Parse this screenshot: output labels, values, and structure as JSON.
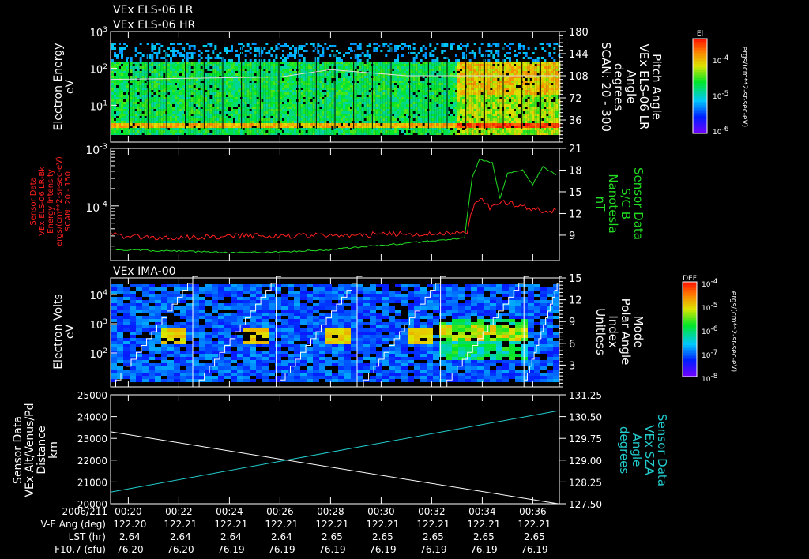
{
  "titles": {
    "top1": "VEx ELS-06 LR",
    "top2": "VEx ELS-06 HR",
    "ima": "VEx IMA-00"
  },
  "colors": {
    "bg": "#000000",
    "axis": "#ffffff",
    "red": "#ff2020",
    "green": "#22dd22",
    "cyan": "#22cccc"
  },
  "chart_data": [
    {
      "type": "heatmap",
      "name": "ELS electron spectrogram",
      "ylabel": [
        "Electron Energy",
        "eV"
      ],
      "yticks": [
        "10^3",
        "10^2",
        "10^1"
      ],
      "ylim_log": [
        0,
        3
      ],
      "right_label": [
        "Pitch Angle",
        "VEx ELS-06 LR",
        "Angle",
        "degrees",
        "SCAN: 20 - 300"
      ],
      "right_ticks": [
        "180",
        "144",
        "108",
        "72",
        "36"
      ],
      "right_lim": [
        0,
        180
      ],
      "pitch_angle_trace_deg": [
        [
          -0.7,
          102
        ],
        [
          6,
          106
        ],
        [
          8,
          118
        ],
        [
          11,
          108
        ],
        [
          17,
          108
        ]
      ],
      "colorbar": {
        "title": "El",
        "ticks": [
          "10^-4",
          "10^-5",
          "10^-6"
        ],
        "unit": "ergs/(cm**2-sr-sec-eV)"
      }
    },
    {
      "type": "line",
      "name": "ELS intensity and magnetic field",
      "ylabel_left": [
        "Sensor Data",
        "VEx ELS-06 LR-Bk",
        "Energy Intensity",
        "ergs/(cm**2-sr-sec-eV)",
        "SCAN: 20 - 150"
      ],
      "yticks_left": [
        "10^-3",
        "10^-4"
      ],
      "ylabel_right": [
        "Sensor Data",
        "S/C B",
        "Nanotesla",
        "nT"
      ],
      "yticks_right": [
        "21",
        "18",
        "15",
        "12",
        "9"
      ],
      "right_lim": [
        5.5,
        21
      ],
      "left_lim_log": [
        -4.95,
        -3
      ],
      "series": [
        {
          "name": "ELS Energy Intensity",
          "color": "red",
          "axis": "left",
          "points": [
            [
              -0.7,
              3.2e-05
            ],
            [
              0,
              2.9e-05
            ],
            [
              2,
              2.8e-05
            ],
            [
              4,
              3e-05
            ],
            [
              6,
              3e-05
            ],
            [
              8,
              3.1e-05
            ],
            [
              10,
              3.2e-05
            ],
            [
              12,
              3.3e-05
            ],
            [
              13.4,
              3.5e-05
            ],
            [
              13.7,
              0.00011
            ],
            [
              14.0,
              0.00013
            ],
            [
              14.3,
              9e-05
            ],
            [
              14.7,
              0.00012
            ],
            [
              15.5,
              0.0001
            ],
            [
              16.2,
              8.5e-05
            ],
            [
              17,
              8.2e-05
            ]
          ]
        },
        {
          "name": "S/C B",
          "color": "green",
          "axis": "right",
          "points": [
            [
              -0.7,
              7.0
            ],
            [
              2,
              6.8
            ],
            [
              4,
              6.6
            ],
            [
              6,
              6.7
            ],
            [
              8,
              7.0
            ],
            [
              10,
              7.6
            ],
            [
              12,
              8.2
            ],
            [
              13.3,
              8.6
            ],
            [
              13.6,
              17
            ],
            [
              13.9,
              19.5
            ],
            [
              14.4,
              19
            ],
            [
              14.7,
              14
            ],
            [
              15.0,
              17.5
            ],
            [
              15.6,
              18
            ],
            [
              16.0,
              16
            ],
            [
              16.4,
              18.5
            ],
            [
              17,
              17.2
            ]
          ]
        }
      ]
    },
    {
      "type": "heatmap",
      "name": "IMA ion spectrogram",
      "ylabel": [
        "Electron Volts",
        "eV"
      ],
      "yticks": [
        "10^4",
        "10^3",
        "10^2"
      ],
      "right_label": [
        "Mode",
        "Polar Angle",
        "Index",
        "Unitless"
      ],
      "right_ticks": [
        "15",
        "12",
        "9",
        "6",
        "3"
      ],
      "right_lim": [
        0,
        15
      ],
      "sweep_starts_min": [
        -0.7,
        2.6,
        5.8,
        9.1,
        12.4,
        15.6
      ],
      "colorbar": {
        "title": "DEF",
        "ticks": [
          "10^-4",
          "10^-5",
          "10^-6",
          "10^-7",
          "10^-8"
        ],
        "unit": "ergs/(cm**2-sr-sec-eV)"
      }
    },
    {
      "type": "line",
      "name": "Altitude and SZA",
      "ylabel_left": [
        "Sensor Data",
        "VEx Alt/Venus/Pd",
        "Distance",
        "km"
      ],
      "yticks_left": [
        "25000",
        "24000",
        "23000",
        "22000",
        "21000",
        "20000"
      ],
      "ylim_left": [
        20000,
        25000
      ],
      "ylabel_right": [
        "Sensor Data",
        "VEx SZA",
        "Angle",
        "degrees"
      ],
      "yticks_right": [
        "131.25",
        "130.50",
        "129.75",
        "129.00",
        "128.25",
        "127.50"
      ],
      "ylim_right": [
        127.5,
        131.25
      ],
      "series": [
        {
          "name": "Distance",
          "color": "white",
          "axis": "left",
          "points": [
            [
              -0.7,
              23300
            ],
            [
              17,
              20000
            ]
          ]
        },
        {
          "name": "SZA",
          "color": "cyan",
          "axis": "right",
          "points": [
            [
              -0.7,
              127.9
            ],
            [
              17,
              130.7
            ]
          ]
        }
      ]
    }
  ],
  "xaxis": {
    "date": "2006/211",
    "times": [
      "00:20",
      "00:22",
      "00:24",
      "00:26",
      "00:28",
      "00:30",
      "00:32",
      "00:34",
      "00:36"
    ],
    "rows": [
      {
        "label": "V-E Ang (deg)",
        "values": [
          "122.20",
          "122.21",
          "122.21",
          "122.21",
          "122.21",
          "122.21",
          "122.21",
          "122.21",
          "122.21"
        ]
      },
      {
        "label": "LST (hr)",
        "values": [
          "2.64",
          "2.64",
          "2.64",
          "2.64",
          "2.65",
          "2.65",
          "2.65",
          "2.65",
          "2.65"
        ]
      },
      {
        "label": "F10.7 (sfu)",
        "values": [
          "76.20",
          "76.20",
          "76.19",
          "76.19",
          "76.19",
          "76.19",
          "76.19",
          "76.19",
          "76.19"
        ]
      }
    ]
  }
}
